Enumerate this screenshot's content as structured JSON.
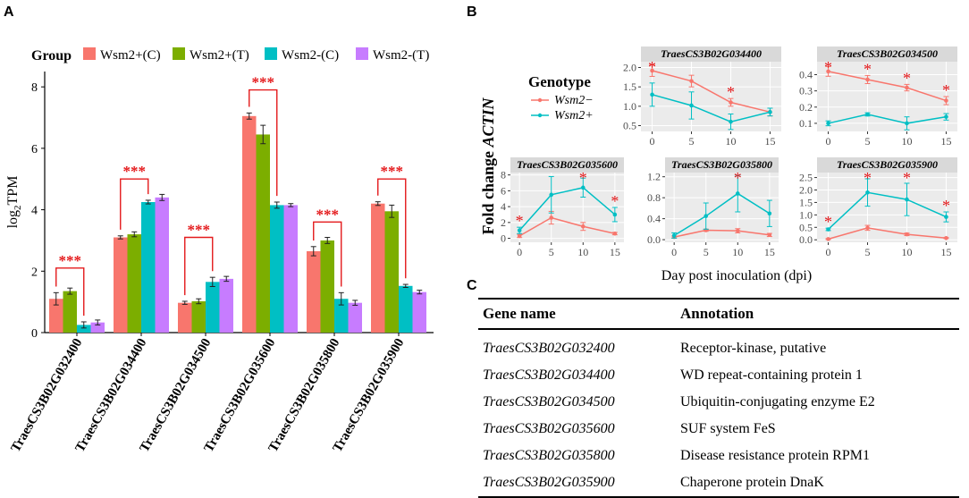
{
  "panel_labels": {
    "a": "A",
    "b": "B",
    "c": "C"
  },
  "colors": {
    "wsm2_plus_c": "#F8766D",
    "wsm2_plus_t": "#7CAE00",
    "wsm2_minus_c": "#00BFC4",
    "wsm2_minus_t": "#C77CFF",
    "line_wsm2_minus": "#F8766D",
    "line_wsm2_plus": "#00BFC4",
    "significance": "#E41A1C",
    "strip_bg": "#D9D9D9",
    "panel_bg": "#EBEBEB"
  },
  "chart_data": [
    {
      "type": "bar",
      "panel": "A",
      "legend_title": "Group",
      "legend_position": "top",
      "ylabel_main": "log",
      "ylabel_sub": "2",
      "ylabel_rest": "TPM",
      "ylim": [
        0,
        8.5
      ],
      "yticks": [
        "0",
        "2",
        "4",
        "6",
        "8"
      ],
      "categories": [
        "TraesCS3B02G032400",
        "TraesCS3B02G034400",
        "TraesCS3B02G034500",
        "TraesCS3B02G035600",
        "TraesCS3B02G035800",
        "TraesCS3B02G035900"
      ],
      "series": [
        {
          "name": "Wsm2+(C)",
          "values": [
            1.1,
            3.1,
            0.97,
            7.05,
            2.65,
            4.2
          ],
          "errors": [
            0.2,
            0.05,
            0.05,
            0.1,
            0.15,
            0.06
          ]
        },
        {
          "name": "Wsm2+(T)",
          "values": [
            1.35,
            3.2,
            1.02,
            6.45,
            3.0,
            3.95
          ],
          "errors": [
            0.1,
            0.08,
            0.08,
            0.3,
            0.1,
            0.2
          ]
        },
        {
          "name": "Wsm2-(C)",
          "values": [
            0.25,
            4.25,
            1.65,
            4.15,
            1.1,
            1.52
          ],
          "errors": [
            0.1,
            0.06,
            0.15,
            0.1,
            0.2,
            0.05
          ]
        },
        {
          "name": "Wsm2-(T)",
          "values": [
            0.33,
            4.4,
            1.75,
            4.15,
            0.97,
            1.32
          ],
          "errors": [
            0.08,
            0.1,
            0.08,
            0.05,
            0.08,
            0.06
          ]
        }
      ],
      "significance_label": "***",
      "significance_brackets": [
        {
          "from_series": 0,
          "to_series": 2,
          "category": 0,
          "y": 2.1
        },
        {
          "from_series": 0,
          "to_series": 2,
          "category": 1,
          "y": 5.0
        },
        {
          "from_series": 0,
          "to_series": 2,
          "category": 2,
          "y": 3.1
        },
        {
          "from_series": 0,
          "to_series": 2,
          "category": 3,
          "y": 7.9
        },
        {
          "from_series": 0,
          "to_series": 2,
          "category": 4,
          "y": 3.6
        },
        {
          "from_series": 0,
          "to_series": 2,
          "category": 5,
          "y": 5.0
        }
      ]
    },
    {
      "type": "line",
      "panel": "B",
      "legend_title": "Genotype",
      "legend_entries": [
        "Wsm2−",
        "Wsm2+"
      ],
      "ylabel_prefix": "Fold change ",
      "ylabel_italic": "ACTIN",
      "xlabel": "Day post inoculation (dpi)",
      "x": [
        0,
        5,
        10,
        15
      ],
      "xticks": [
        "0",
        "5",
        "10",
        "15"
      ],
      "significance_label": "*",
      "facets": [
        {
          "title": "TraesCS3B02G034400",
          "ylim": [
            0.35,
            2.15
          ],
          "yticks": [
            {
              "v": 0.5,
              "label": "0.5"
            },
            {
              "v": 1.0,
              "label": "1.0"
            },
            {
              "v": 1.5,
              "label": "1.5"
            },
            {
              "v": 2.0,
              "label": "2.0"
            }
          ],
          "series": [
            {
              "name": "Wsm2−",
              "values": [
                1.92,
                1.65,
                1.1,
                0.85
              ],
              "errors": [
                0.15,
                0.15,
                0.1,
                0.1
              ]
            },
            {
              "name": "Wsm2+",
              "values": [
                1.3,
                1.02,
                0.6,
                0.85
              ],
              "errors": [
                0.3,
                0.35,
                0.2,
                0.1
              ]
            }
          ],
          "stars": [
            0,
            2
          ]
        },
        {
          "title": "TraesCS3B02G034500",
          "ylim": [
            0.05,
            0.48
          ],
          "yticks": [
            {
              "v": 0.1,
              "label": "0.1"
            },
            {
              "v": 0.2,
              "label": "0.2"
            },
            {
              "v": 0.3,
              "label": "0.3"
            },
            {
              "v": 0.4,
              "label": "0.4"
            }
          ],
          "series": [
            {
              "name": "Wsm2−",
              "values": [
                0.42,
                0.37,
                0.32,
                0.24
              ],
              "errors": [
                0.03,
                0.025,
                0.02,
                0.025
              ]
            },
            {
              "name": "Wsm2+",
              "values": [
                0.1,
                0.155,
                0.1,
                0.14
              ],
              "errors": [
                0.015,
                0.01,
                0.04,
                0.02
              ]
            }
          ],
          "stars": [
            0,
            1,
            2,
            3
          ]
        },
        {
          "title": "TraesCS3B02G035600",
          "ylim": [
            -0.5,
            8.3
          ],
          "yticks": [
            {
              "v": 0,
              "label": "0"
            },
            {
              "v": 2,
              "label": "2"
            },
            {
              "v": 4,
              "label": "4"
            },
            {
              "v": 6,
              "label": "6"
            },
            {
              "v": 8,
              "label": "8"
            }
          ],
          "series": [
            {
              "name": "Wsm2−",
              "values": [
                0.3,
                2.6,
                1.5,
                0.6
              ],
              "errors": [
                0.2,
                0.8,
                0.5,
                0.15
              ]
            },
            {
              "name": "Wsm2+",
              "values": [
                1.0,
                5.5,
                6.4,
                3.0
              ],
              "errors": [
                0.4,
                2.3,
                1.2,
                0.9
              ]
            }
          ],
          "stars": [
            0,
            2,
            3
          ]
        },
        {
          "title": "TraesCS3B02G035800",
          "ylim": [
            -0.05,
            1.28
          ],
          "yticks": [
            {
              "v": 0.0,
              "label": "0.0"
            },
            {
              "v": 0.4,
              "label": "0.4"
            },
            {
              "v": 0.8,
              "label": "0.8"
            },
            {
              "v": 1.2,
              "label": "1.2"
            }
          ],
          "series": [
            {
              "name": "Wsm2−",
              "values": [
                0.05,
                0.18,
                0.17,
                0.09
              ],
              "errors": [
                0.02,
                0.02,
                0.04,
                0.03
              ]
            },
            {
              "name": "Wsm2+",
              "values": [
                0.08,
                0.45,
                0.88,
                0.5
              ],
              "errors": [
                0.05,
                0.25,
                0.35,
                0.25
              ]
            }
          ],
          "stars": [
            2
          ]
        },
        {
          "title": "TraesCS3B02G035900",
          "ylim": [
            -0.1,
            2.7
          ],
          "yticks": [
            {
              "v": 0.0,
              "label": "0.0"
            },
            {
              "v": 0.5,
              "label": "0.5"
            },
            {
              "v": 1.0,
              "label": "1.0"
            },
            {
              "v": 1.5,
              "label": "1.5"
            },
            {
              "v": 2.0,
              "label": "2.0"
            },
            {
              "v": 2.5,
              "label": "2.5"
            }
          ],
          "series": [
            {
              "name": "Wsm2−",
              "values": [
                0.03,
                0.48,
                0.22,
                0.07
              ],
              "errors": [
                0.02,
                0.1,
                0.05,
                0.02
              ]
            },
            {
              "name": "Wsm2+",
              "values": [
                0.42,
                1.9,
                1.62,
                0.92
              ],
              "errors": [
                0.05,
                0.55,
                0.65,
                0.2
              ]
            }
          ],
          "stars": [
            0,
            1,
            2,
            3
          ]
        }
      ]
    }
  ],
  "table": {
    "headers": [
      "Gene name",
      "Annotation"
    ],
    "rows": [
      [
        "TraesCS3B02G032400",
        "Receptor-kinase, putative"
      ],
      [
        "TraesCS3B02G034400",
        "WD repeat-containing protein 1"
      ],
      [
        "TraesCS3B02G034500",
        "Ubiquitin-conjugating enzyme E2"
      ],
      [
        "TraesCS3B02G035600",
        "SUF system FeS"
      ],
      [
        "TraesCS3B02G035800",
        "Disease resistance protein RPM1"
      ],
      [
        "TraesCS3B02G035900",
        "Chaperone protein DnaK"
      ]
    ]
  }
}
